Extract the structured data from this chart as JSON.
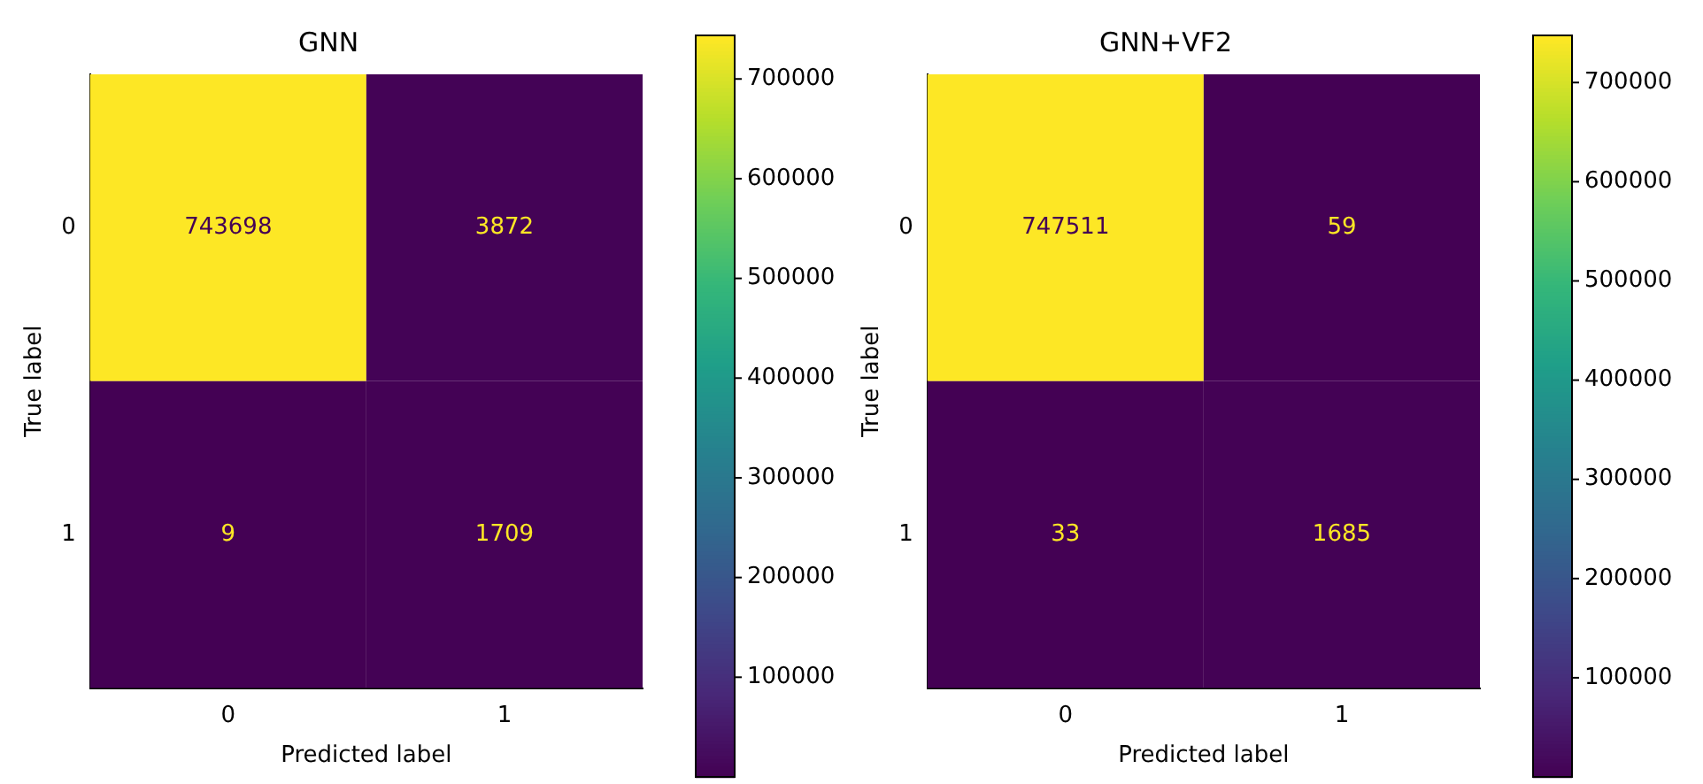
{
  "chart_data": [
    {
      "type": "heatmap",
      "title": "GNN",
      "xlabel": "Predicted label",
      "ylabel": "True label",
      "categories": [
        "0",
        "1"
      ],
      "y_categories": [
        "0",
        "1"
      ],
      "cells": [
        [
          743698,
          3872
        ],
        [
          9,
          1709
        ]
      ],
      "clim": [
        9,
        743698
      ],
      "cticks": [
        100000,
        200000,
        300000,
        400000,
        500000,
        600000,
        700000
      ],
      "data_labels": true
    },
    {
      "type": "heatmap",
      "title": "GNN+VF2",
      "xlabel": "Predicted label",
      "ylabel": "True label",
      "categories": [
        "0",
        "1"
      ],
      "y_categories": [
        "0",
        "1"
      ],
      "cells": [
        [
          747511,
          59
        ],
        [
          33,
          1685
        ]
      ],
      "clim": [
        33,
        747511
      ],
      "cticks": [
        100000,
        200000,
        300000,
        400000,
        500000,
        600000,
        700000
      ],
      "data_labels": true
    }
  ]
}
